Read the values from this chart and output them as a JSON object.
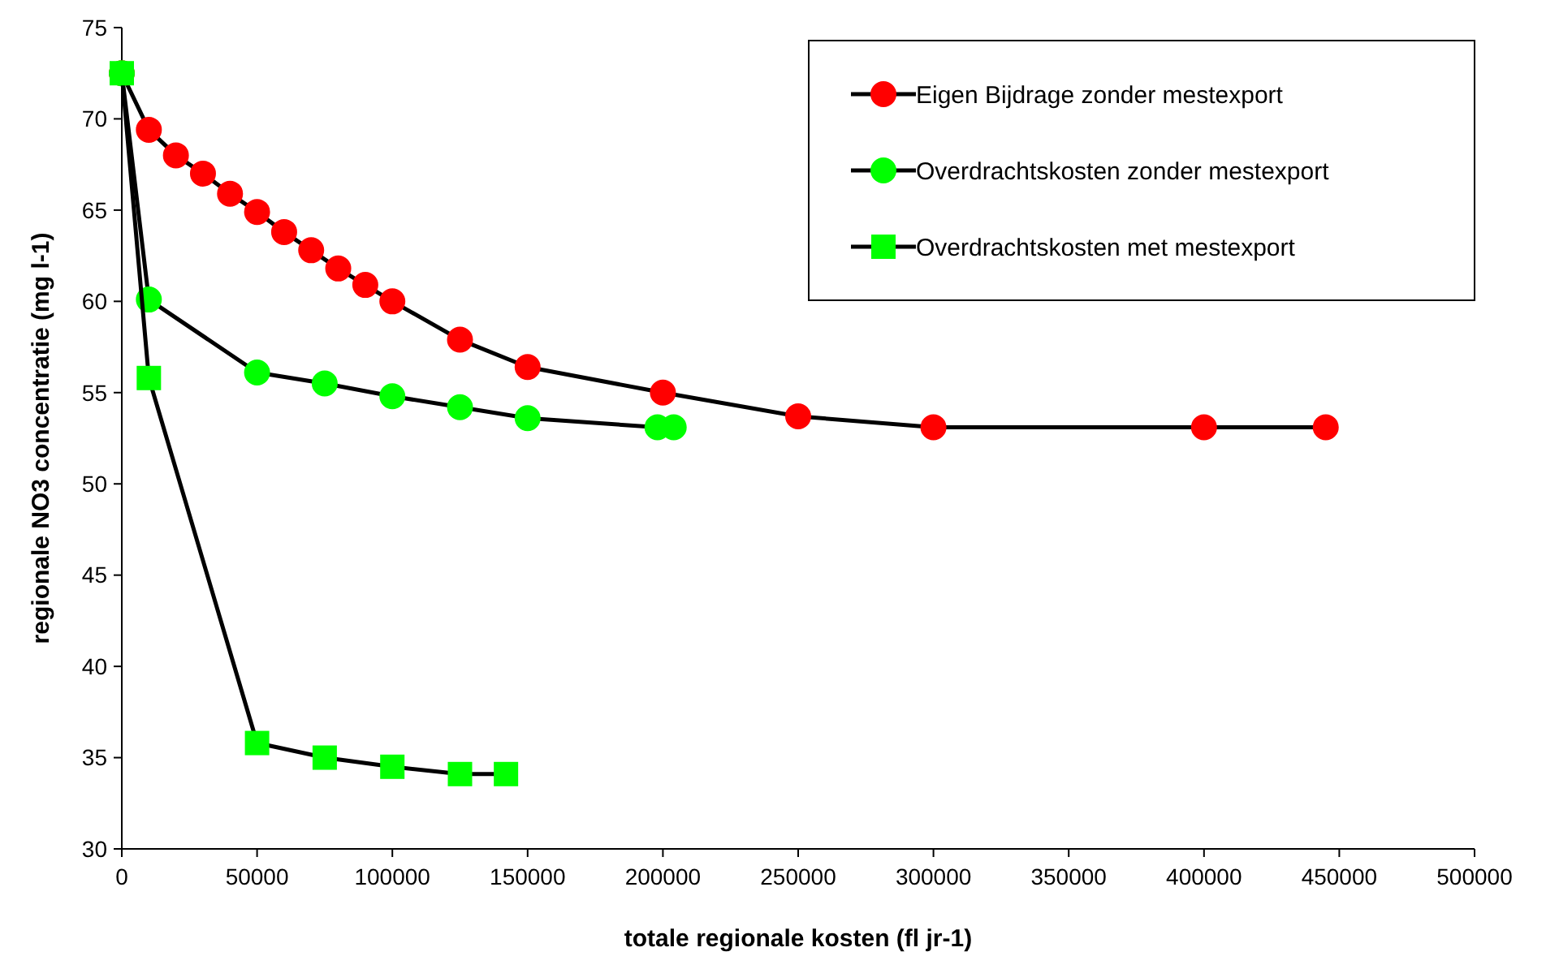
{
  "chart_data": {
    "type": "line",
    "xlabel": "totale regionale kosten (fl jr-1)",
    "ylabel": "regionale NO3 concentratie (mg l-1)",
    "xlim": [
      0,
      500000
    ],
    "xticks": [
      0,
      50000,
      100000,
      150000,
      200000,
      250000,
      300000,
      350000,
      400000,
      450000,
      500000
    ],
    "ylim": [
      30,
      75
    ],
    "yticks": [
      30,
      35,
      40,
      45,
      50,
      55,
      60,
      65,
      70,
      75
    ],
    "grid": false,
    "legend": "top right",
    "series": [
      {
        "name": "Eigen Bijdrage zonder mestexport",
        "color": "#ff0000",
        "marker": "circle",
        "x": [
          0,
          10000,
          20000,
          30000,
          40000,
          50000,
          60000,
          70000,
          80000,
          90000,
          100000,
          125000,
          150000,
          200000,
          250000,
          300000,
          400000,
          445000
        ],
        "values": [
          72.5,
          69.4,
          68,
          67,
          65.9,
          64.9,
          63.8,
          62.8,
          61.8,
          60.9,
          60,
          57.9,
          56.4,
          55,
          53.7,
          53.1,
          53.1,
          53.1
        ]
      },
      {
        "name": "Overdrachtskosten zonder mestexport",
        "color": "#00ff00",
        "marker": "circle",
        "x": [
          0,
          10000,
          50000,
          75000,
          100000,
          125000,
          150000,
          198000,
          204000
        ],
        "values": [
          72.5,
          60.1,
          56.1,
          55.5,
          54.8,
          54.2,
          53.6,
          53.1,
          53.1
        ]
      },
      {
        "name": "Overdrachtskosten met mestexport",
        "color": "#00ff00",
        "marker": "square",
        "x": [
          0,
          10000,
          50000,
          75000,
          100000,
          125000,
          142000
        ],
        "values": [
          72.5,
          55.8,
          35.8,
          35,
          34.5,
          34.1,
          34.1
        ]
      }
    ]
  }
}
